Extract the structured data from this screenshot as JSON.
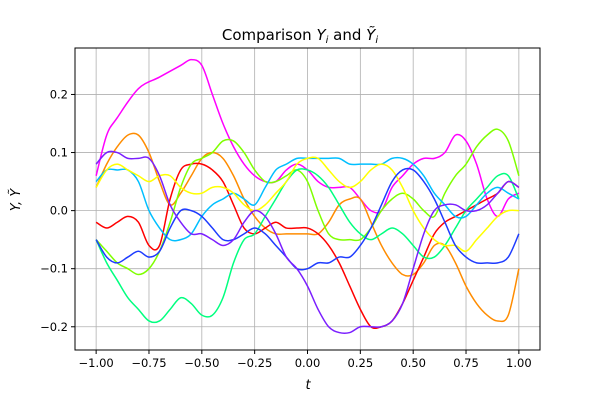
{
  "chart_data": {
    "type": "line",
    "title": "Comparison Yᵢ and Ỹᵢ",
    "title_parts": {
      "prefix": "Comparison ",
      "y": "Y",
      "i": "i",
      "and": " and ",
      "ytilde": "Ỹ",
      "i2": "i"
    },
    "xlabel": "t",
    "ylabel": "Y, Ỹ",
    "xlim": [
      -1.1,
      1.1
    ],
    "ylim": [
      -0.24,
      0.28
    ],
    "xticks": [
      -1.0,
      -0.75,
      -0.5,
      -0.25,
      0.0,
      0.25,
      0.5,
      0.75,
      1.0
    ],
    "xtick_labels": [
      "−1.00",
      "−0.75",
      "−0.50",
      "−0.25",
      "0.00",
      "0.25",
      "0.50",
      "0.75",
      "1.00"
    ],
    "yticks": [
      -0.2,
      -0.1,
      0.0,
      0.1,
      0.2
    ],
    "ytick_labels": [
      "−0.2",
      "−0.1",
      "0.0",
      "0.1",
      "0.2"
    ],
    "grid": true,
    "series": [
      {
        "color": "#ff00ff",
        "x": [
          -1.0,
          -0.95,
          -0.9,
          -0.8,
          -0.7,
          -0.6,
          -0.55,
          -0.5,
          -0.45,
          -0.4,
          -0.35,
          -0.3,
          -0.25,
          -0.2,
          -0.15,
          -0.1,
          -0.05,
          0.0,
          0.05,
          0.1,
          0.15,
          0.2,
          0.25,
          0.3,
          0.35,
          0.4,
          0.45,
          0.5,
          0.55,
          0.6,
          0.65,
          0.7,
          0.75,
          0.8,
          0.85,
          0.9,
          0.95,
          1.0
        ],
        "y": [
          0.06,
          0.13,
          0.16,
          0.21,
          0.23,
          0.25,
          0.26,
          0.25,
          0.2,
          0.15,
          0.11,
          0.08,
          0.06,
          0.05,
          0.05,
          0.07,
          0.08,
          0.07,
          0.05,
          0.04,
          0.04,
          0.04,
          0.02,
          0.0,
          0.0,
          0.04,
          0.06,
          0.08,
          0.09,
          0.09,
          0.1,
          0.13,
          0.12,
          0.08,
          0.02,
          -0.01,
          0.02,
          0.03
        ]
      },
      {
        "color": "#ff8c00",
        "x": [
          -1.0,
          -0.95,
          -0.9,
          -0.85,
          -0.8,
          -0.75,
          -0.7,
          -0.65,
          -0.6,
          -0.55,
          -0.5,
          -0.45,
          -0.4,
          -0.35,
          -0.3,
          -0.25,
          -0.2,
          -0.15,
          -0.1,
          -0.05,
          0.0,
          0.05,
          0.1,
          0.15,
          0.2,
          0.25,
          0.3,
          0.35,
          0.4,
          0.45,
          0.5,
          0.55,
          0.6,
          0.65,
          0.7,
          0.75,
          0.8,
          0.85,
          0.9,
          0.95,
          1.0
        ],
        "y": [
          0.04,
          0.08,
          0.11,
          0.13,
          0.13,
          0.1,
          0.05,
          0.01,
          0.03,
          0.06,
          0.09,
          0.1,
          0.09,
          0.06,
          0.02,
          -0.01,
          -0.03,
          -0.04,
          -0.04,
          -0.04,
          -0.04,
          -0.04,
          -0.02,
          0.01,
          0.02,
          0.02,
          -0.02,
          -0.06,
          -0.09,
          -0.11,
          -0.11,
          -0.09,
          -0.06,
          -0.06,
          -0.09,
          -0.13,
          -0.16,
          -0.18,
          -0.19,
          -0.18,
          -0.1
        ]
      },
      {
        "color": "#ff0000",
        "x": [
          -1.0,
          -0.95,
          -0.9,
          -0.85,
          -0.8,
          -0.75,
          -0.7,
          -0.65,
          -0.6,
          -0.55,
          -0.5,
          -0.45,
          -0.4,
          -0.35,
          -0.3,
          -0.25,
          -0.2,
          -0.15,
          -0.1,
          -0.05,
          0.0,
          0.05,
          0.1,
          0.15,
          0.2,
          0.25,
          0.3,
          0.35,
          0.4,
          0.45,
          0.5,
          0.55,
          0.6,
          0.65,
          0.7,
          0.75,
          0.8,
          0.85,
          0.9,
          0.95,
          1.0
        ],
        "y": [
          -0.02,
          -0.03,
          -0.02,
          -0.01,
          -0.02,
          -0.06,
          -0.06,
          0.02,
          0.07,
          0.08,
          0.08,
          0.07,
          0.05,
          0.01,
          -0.03,
          -0.04,
          -0.03,
          -0.02,
          -0.03,
          -0.03,
          -0.03,
          -0.04,
          -0.06,
          -0.09,
          -0.13,
          -0.17,
          -0.2,
          -0.2,
          -0.19,
          -0.16,
          -0.12,
          -0.08,
          -0.04,
          -0.02,
          -0.01,
          0.0,
          0.01,
          0.02,
          0.03,
          0.05,
          0.04
        ]
      },
      {
        "color": "#7fff00",
        "x": [
          -1.0,
          -0.95,
          -0.9,
          -0.85,
          -0.8,
          -0.75,
          -0.7,
          -0.65,
          -0.6,
          -0.55,
          -0.5,
          -0.45,
          -0.4,
          -0.35,
          -0.3,
          -0.25,
          -0.2,
          -0.15,
          -0.1,
          -0.05,
          0.0,
          0.05,
          0.1,
          0.15,
          0.2,
          0.25,
          0.3,
          0.35,
          0.4,
          0.45,
          0.5,
          0.55,
          0.6,
          0.65,
          0.7,
          0.75,
          0.8,
          0.85,
          0.9,
          0.95,
          1.0
        ],
        "y": [
          -0.05,
          -0.07,
          -0.09,
          -0.1,
          -0.11,
          -0.1,
          -0.07,
          -0.02,
          0.04,
          0.08,
          0.09,
          0.1,
          0.12,
          0.12,
          0.1,
          0.07,
          0.05,
          0.05,
          0.06,
          0.07,
          0.05,
          0.0,
          -0.04,
          -0.05,
          -0.05,
          -0.05,
          -0.03,
          0.0,
          0.02,
          0.03,
          0.02,
          0.0,
          -0.01,
          0.03,
          0.06,
          0.08,
          0.11,
          0.13,
          0.14,
          0.12,
          0.06
        ]
      },
      {
        "color": "#00ff7f",
        "x": [
          -1.0,
          -0.95,
          -0.9,
          -0.85,
          -0.8,
          -0.75,
          -0.7,
          -0.65,
          -0.6,
          -0.55,
          -0.5,
          -0.45,
          -0.4,
          -0.35,
          -0.3,
          -0.25,
          -0.2,
          -0.15,
          -0.1,
          -0.05,
          0.0,
          0.05,
          0.1,
          0.15,
          0.2,
          0.25,
          0.3,
          0.35,
          0.4,
          0.45,
          0.5,
          0.55,
          0.6,
          0.65,
          0.7,
          0.75,
          0.8,
          0.85,
          0.9,
          0.95,
          1.0
        ],
        "y": [
          -0.05,
          -0.09,
          -0.12,
          -0.15,
          -0.17,
          -0.19,
          -0.19,
          -0.17,
          -0.15,
          -0.16,
          -0.18,
          -0.18,
          -0.15,
          -0.09,
          -0.05,
          -0.04,
          -0.01,
          0.02,
          0.05,
          0.07,
          0.07,
          0.06,
          0.04,
          0.01,
          -0.02,
          -0.04,
          -0.05,
          -0.04,
          -0.03,
          -0.04,
          -0.06,
          -0.08,
          -0.08,
          -0.06,
          -0.03,
          0.0,
          0.02,
          0.04,
          0.06,
          0.06,
          0.02
        ]
      },
      {
        "color": "#00bfff",
        "x": [
          -1.0,
          -0.95,
          -0.9,
          -0.85,
          -0.8,
          -0.75,
          -0.7,
          -0.65,
          -0.6,
          -0.55,
          -0.5,
          -0.45,
          -0.4,
          -0.35,
          -0.3,
          -0.25,
          -0.2,
          -0.15,
          -0.1,
          -0.05,
          0.0,
          0.05,
          0.1,
          0.15,
          0.2,
          0.25,
          0.3,
          0.35,
          0.4,
          0.45,
          0.5,
          0.55,
          0.6,
          0.65,
          0.7,
          0.75,
          0.8,
          0.85,
          0.9,
          0.95,
          1.0
        ],
        "y": [
          0.05,
          0.07,
          0.07,
          0.07,
          0.05,
          0.0,
          -0.03,
          -0.05,
          -0.05,
          -0.04,
          -0.01,
          0.01,
          0.02,
          0.03,
          0.02,
          0.01,
          0.04,
          0.07,
          0.08,
          0.09,
          0.09,
          0.09,
          0.09,
          0.09,
          0.08,
          0.08,
          0.08,
          0.08,
          0.09,
          0.09,
          0.08,
          0.06,
          0.03,
          0.01,
          -0.01,
          -0.01,
          0.01,
          0.03,
          0.04,
          0.03,
          0.02
        ]
      },
      {
        "color": "#ffff00",
        "x": [
          -1.0,
          -0.95,
          -0.9,
          -0.85,
          -0.8,
          -0.75,
          -0.7,
          -0.65,
          -0.6,
          -0.55,
          -0.5,
          -0.45,
          -0.4,
          -0.35,
          -0.3,
          -0.25,
          -0.2,
          -0.15,
          -0.1,
          -0.05,
          0.0,
          0.05,
          0.1,
          0.15,
          0.2,
          0.25,
          0.3,
          0.35,
          0.4,
          0.45,
          0.5,
          0.55,
          0.6,
          0.65,
          0.7,
          0.75,
          0.8,
          0.85,
          0.9,
          0.95,
          1.0
        ],
        "y": [
          0.04,
          0.07,
          0.08,
          0.07,
          0.06,
          0.05,
          0.06,
          0.06,
          0.04,
          0.03,
          0.03,
          0.04,
          0.04,
          0.03,
          0.01,
          0.0,
          0.01,
          0.03,
          0.05,
          0.08,
          0.09,
          0.09,
          0.07,
          0.05,
          0.04,
          0.05,
          0.07,
          0.08,
          0.07,
          0.04,
          0.0,
          -0.03,
          -0.05,
          -0.06,
          -0.06,
          -0.07,
          -0.05,
          -0.03,
          -0.01,
          0.0,
          0.0
        ]
      },
      {
        "color": "#1e3cff",
        "x": [
          -1.0,
          -0.95,
          -0.9,
          -0.85,
          -0.8,
          -0.75,
          -0.7,
          -0.65,
          -0.6,
          -0.55,
          -0.5,
          -0.45,
          -0.4,
          -0.35,
          -0.3,
          -0.25,
          -0.2,
          -0.15,
          -0.1,
          -0.05,
          0.0,
          0.05,
          0.1,
          0.15,
          0.2,
          0.25,
          0.3,
          0.35,
          0.4,
          0.45,
          0.5,
          0.55,
          0.6,
          0.65,
          0.7,
          0.75,
          0.8,
          0.85,
          0.9,
          0.95,
          1.0
        ],
        "y": [
          -0.05,
          -0.08,
          -0.09,
          -0.08,
          -0.07,
          -0.08,
          -0.07,
          -0.03,
          0.0,
          0.0,
          -0.01,
          -0.03,
          -0.05,
          -0.05,
          -0.04,
          -0.03,
          -0.04,
          -0.06,
          -0.08,
          -0.1,
          -0.1,
          -0.09,
          -0.09,
          -0.08,
          -0.08,
          -0.06,
          -0.03,
          0.01,
          0.05,
          0.07,
          0.07,
          0.05,
          0.02,
          -0.02,
          -0.06,
          -0.08,
          -0.09,
          -0.09,
          -0.09,
          -0.08,
          -0.04
        ]
      },
      {
        "color": "#7b1fff",
        "x": [
          -1.0,
          -0.95,
          -0.9,
          -0.85,
          -0.8,
          -0.75,
          -0.7,
          -0.65,
          -0.6,
          -0.55,
          -0.5,
          -0.45,
          -0.4,
          -0.35,
          -0.3,
          -0.25,
          -0.2,
          -0.15,
          -0.1,
          -0.05,
          0.0,
          0.05,
          0.1,
          0.15,
          0.2,
          0.25,
          0.3,
          0.35,
          0.4,
          0.45,
          0.5,
          0.55,
          0.6,
          0.65,
          0.7,
          0.75,
          0.8,
          0.85,
          0.9,
          0.95,
          1.0
        ],
        "y": [
          0.08,
          0.1,
          0.1,
          0.09,
          0.09,
          0.09,
          0.06,
          0.01,
          -0.02,
          -0.04,
          -0.04,
          -0.05,
          -0.06,
          -0.05,
          -0.02,
          0.0,
          -0.01,
          -0.04,
          -0.08,
          -0.1,
          -0.13,
          -0.17,
          -0.2,
          -0.21,
          -0.21,
          -0.2,
          -0.2,
          -0.2,
          -0.19,
          -0.16,
          -0.1,
          -0.04,
          0.0,
          0.01,
          0.01,
          0.0,
          0.0,
          0.01,
          0.03,
          0.05,
          0.04
        ]
      }
    ]
  }
}
